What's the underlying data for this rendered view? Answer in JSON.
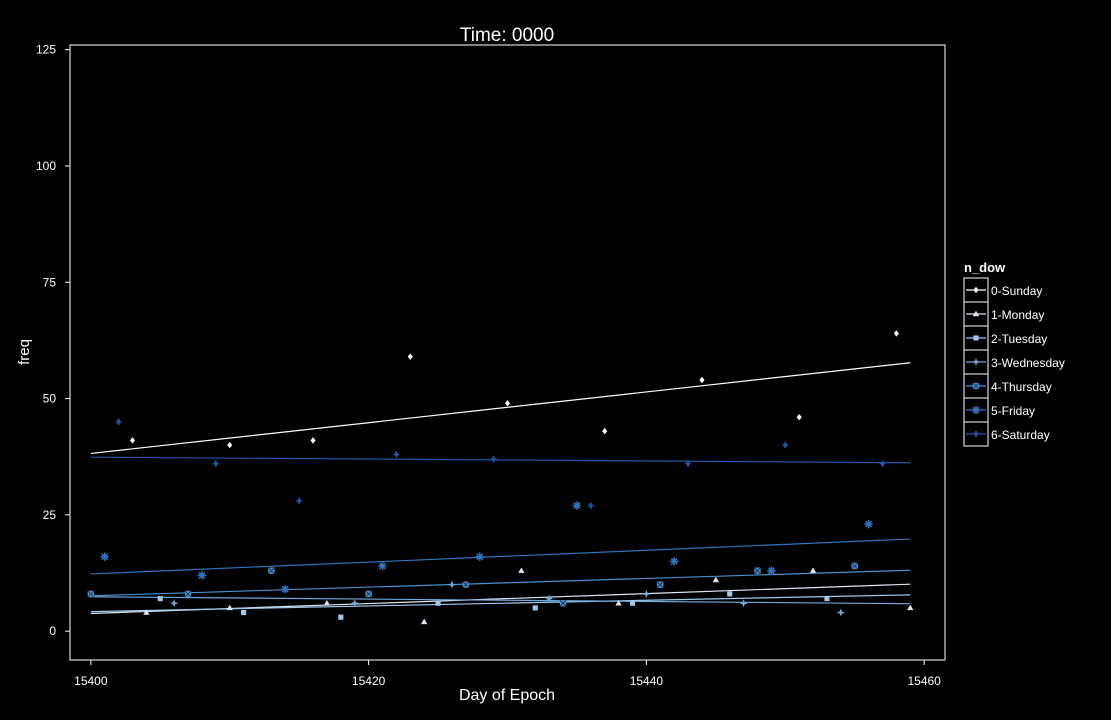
{
  "chart_data": {
    "type": "scatter",
    "title": "Time: 0000",
    "xlabel": "Day of Epoch",
    "ylabel": "freq",
    "xlim": [
      15398.5,
      15461.5
    ],
    "ylim": [
      -6.2,
      126
    ],
    "xticks": [
      15400,
      15420,
      15440,
      15460
    ],
    "yticks": [
      0,
      25,
      50,
      75,
      100,
      125
    ],
    "grid": false,
    "background": "#000000",
    "legend": {
      "title": "n_dow",
      "placement": "right"
    },
    "series": [
      {
        "name": "0-Sunday",
        "color": "#ffffff",
        "marker": "diamond",
        "points": [
          [
            15403,
            41
          ],
          [
            15410,
            40
          ],
          [
            15416,
            41
          ],
          [
            15423,
            59
          ],
          [
            15430,
            49
          ],
          [
            15437,
            43
          ],
          [
            15444,
            54
          ],
          [
            15451,
            46
          ],
          [
            15458,
            64
          ]
        ],
        "trend": [
          [
            15400,
            38.2
          ],
          [
            15459,
            57.7
          ]
        ]
      },
      {
        "name": "1-Monday",
        "color": "#dce6f2",
        "marker": "triangle",
        "points": [
          [
            15404,
            4
          ],
          [
            15410,
            5
          ],
          [
            15417,
            6
          ],
          [
            15424,
            2
          ],
          [
            15431,
            13
          ],
          [
            15438,
            6
          ],
          [
            15445,
            11
          ],
          [
            15452,
            13
          ],
          [
            15459,
            5
          ]
        ],
        "trend": [
          [
            15400,
            3.8
          ],
          [
            15459,
            10.1
          ]
        ]
      },
      {
        "name": "2-Tuesday",
        "color": "#9ec9ee",
        "marker": "square",
        "points": [
          [
            15405,
            7
          ],
          [
            15411,
            4
          ],
          [
            15418,
            3
          ],
          [
            15425,
            6
          ],
          [
            15432,
            5
          ],
          [
            15439,
            6
          ],
          [
            15446,
            8
          ],
          [
            15453,
            7
          ]
        ],
        "trend": [
          [
            15400,
            4.2
          ],
          [
            15459,
            7.8
          ]
        ]
      },
      {
        "name": "3-Wednesday",
        "color": "#6ba8dc",
        "marker": "star4",
        "points": [
          [
            15406,
            6
          ],
          [
            15419,
            6
          ],
          [
            15426,
            10
          ],
          [
            15433,
            7
          ],
          [
            15440,
            8
          ],
          [
            15447,
            6
          ],
          [
            15454,
            4
          ]
        ],
        "trend": [
          [
            15400,
            7.4
          ],
          [
            15459,
            5.9
          ]
        ]
      },
      {
        "name": "4-Thursday",
        "color": "#4a90d0",
        "marker": "square-x",
        "points": [
          [
            15400,
            8
          ],
          [
            15407,
            8
          ],
          [
            15413,
            13
          ],
          [
            15420,
            8
          ],
          [
            15427,
            10
          ],
          [
            15434,
            6
          ],
          [
            15441,
            10
          ],
          [
            15448,
            13
          ],
          [
            15455,
            14
          ]
        ],
        "trend": [
          [
            15400,
            7.6
          ],
          [
            15459,
            13.1
          ]
        ]
      },
      {
        "name": "5-Friday",
        "color": "#2f74bf",
        "marker": "asterisk",
        "points": [
          [
            15401,
            16
          ],
          [
            15408,
            12
          ],
          [
            15414,
            9
          ],
          [
            15421,
            14
          ],
          [
            15428,
            16
          ],
          [
            15435,
            27
          ],
          [
            15442,
            15
          ],
          [
            15449,
            13
          ],
          [
            15456,
            23
          ]
        ],
        "trend": [
          [
            15400,
            12.3
          ],
          [
            15459,
            19.8
          ]
        ]
      },
      {
        "name": "6-Saturday",
        "color": "#1e56a6",
        "marker": "star-diamond",
        "points": [
          [
            15402,
            45
          ],
          [
            15409,
            36
          ],
          [
            15415,
            28
          ],
          [
            15422,
            38
          ],
          [
            15429,
            37
          ],
          [
            15436,
            27
          ],
          [
            15443,
            36
          ],
          [
            15450,
            40
          ],
          [
            15457,
            36
          ]
        ],
        "trend": [
          [
            15400,
            37.4
          ],
          [
            15459,
            36.2
          ]
        ]
      }
    ]
  }
}
